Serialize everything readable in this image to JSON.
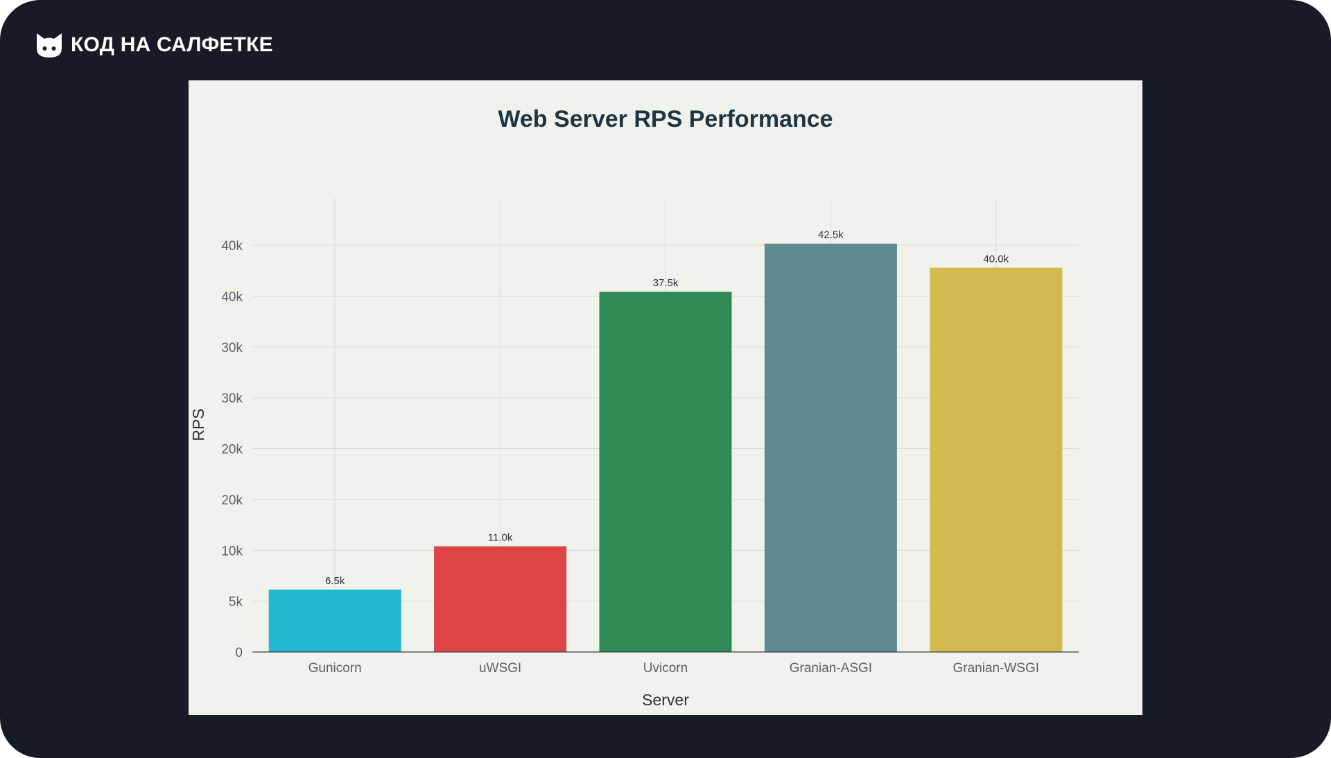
{
  "brand": {
    "name": "КОД НА САЛФЕТКЕ",
    "logo_icon": "cat-face-icon"
  },
  "colors": {
    "background": "#171b26",
    "panel": "#f2f2ed",
    "title": "#1d3443"
  },
  "chart_data": {
    "type": "bar",
    "title": "Web Server RPS Performance",
    "xlabel": "Server",
    "ylabel": "RPS",
    "grid": true,
    "legend": "none",
    "categories": [
      "Gunicorn",
      "uWSGI",
      "Uvicorn",
      "Granian-ASGI",
      "Granian-WSGI"
    ],
    "values": [
      6500,
      11000,
      37500,
      42500,
      40000
    ],
    "data_labels": [
      "6.5k",
      "11.0k",
      "37.5k",
      "42.5k",
      "40.0k"
    ],
    "colors": [
      "#22b8cf",
      "#dc4446",
      "#2f8a56",
      "#5f8a8f",
      "#d3ba4f"
    ],
    "y_tick_labels": [
      "0",
      "5k",
      "10k",
      "20k",
      "20k",
      "30k",
      "30k",
      "40k",
      "40k"
    ],
    "ylim": [
      0,
      45000
    ]
  }
}
